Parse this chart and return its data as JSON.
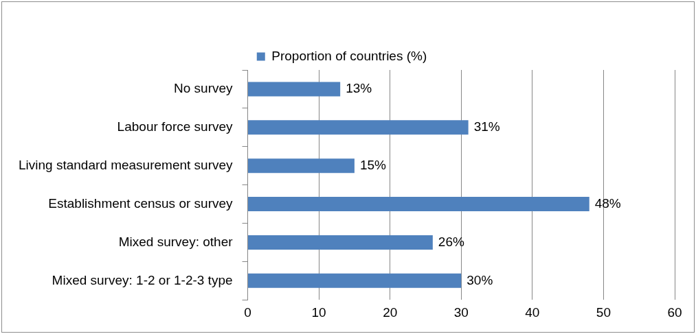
{
  "chart_data": {
    "type": "bar",
    "orientation": "horizontal",
    "categories": [
      "No survey",
      "Labour force survey",
      "Living standard measurement survey",
      "Establishment census or survey",
      "Mixed survey: other",
      "Mixed survey: 1-2 or 1-2-3 type"
    ],
    "series": [
      {
        "name": "Proportion of countries (%)",
        "color": "#4f81bd",
        "values": [
          13,
          31,
          15,
          48,
          26,
          30
        ],
        "value_labels": [
          "13%",
          "31%",
          "15%",
          "48%",
          "26%",
          "30%"
        ]
      }
    ],
    "xlim": [
      0,
      60
    ],
    "xticks": [
      0,
      10,
      20,
      30,
      40,
      50,
      60
    ],
    "grid": "x",
    "legend": "top"
  }
}
